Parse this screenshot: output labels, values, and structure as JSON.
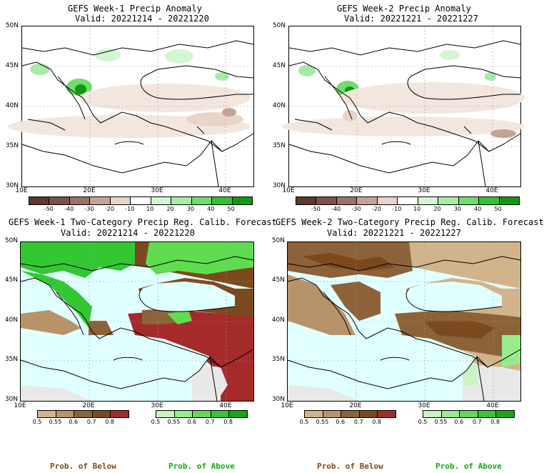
{
  "panels": [
    {
      "id": "p1",
      "title1": "GEFS Week-1 Precip Anomaly",
      "title2": "Valid: 20221214 - 20221220"
    },
    {
      "id": "p2",
      "title1": "GEFS Week-2 Precip Anomaly",
      "title2": "Valid: 20221221 - 20221227"
    },
    {
      "id": "p3",
      "title1": "GEFS Week-1 Two-Category Precip Reg. Calib. Forecast",
      "title2": "Valid: 20221214 - 20221220"
    },
    {
      "id": "p4",
      "title1": "GEFS Week-2 Two-Category Precip Reg. Calib. Forecast",
      "title2": "Valid: 20221221 - 20221227"
    }
  ],
  "lat_labels": [
    "50N",
    "45N",
    "40N",
    "35N",
    "30N"
  ],
  "lon_labels": [
    "10E",
    "20E",
    "30E",
    "40E"
  ],
  "anomaly_colorbar": {
    "labels": [
      "-50",
      "-40",
      "-30",
      "-20",
      "-10",
      "10",
      "20",
      "30",
      "40",
      "50"
    ],
    "colors": [
      "#5a3a2e",
      "#7a5246",
      "#9a7364",
      "#c4a394",
      "#e8d4c8",
      "#ffffff",
      "#d4f5d4",
      "#a6eba6",
      "#6fdc6f",
      "#33c233",
      "#109910"
    ]
  },
  "below_colorbar": {
    "labels": [
      "0.5",
      "0.55",
      "0.6",
      "0.7",
      "0.8"
    ],
    "colors": [
      "#d2b48c",
      "#b8936a",
      "#8c6239",
      "#7a4a1e",
      "#a52a2a"
    ]
  },
  "above_colorbar": {
    "labels": [
      "0.5",
      "0.55",
      "0.6",
      "0.7",
      "0.8"
    ],
    "colors": [
      "#c8f5c0",
      "#98ec8c",
      "#5fdc50",
      "#33c733",
      "#11aa11"
    ]
  },
  "prob_labels": {
    "below": "Prob. of Below",
    "above": "Prob. of Above"
  },
  "prob_colors": {
    "below": "#7a4a1e",
    "above": "#11aa11"
  },
  "chart_data": [
    {
      "type": "heatmap",
      "title": "GEFS Week-1 Precip Anomaly",
      "subtitle": "Valid: 20221214 - 20221220",
      "xlim": [
        10,
        44
      ],
      "ylim": [
        30,
        50
      ],
      "x_ticks": [
        "10E",
        "20E",
        "30E",
        "40E"
      ],
      "y_ticks": [
        "30N",
        "35N",
        "40N",
        "45N",
        "50N"
      ],
      "colorbar": [
        "-50",
        "-40",
        "-30",
        "-20",
        "-10",
        "10",
        "20",
        "30",
        "40",
        "50"
      ]
    },
    {
      "type": "heatmap",
      "title": "GEFS Week-2 Precip Anomaly",
      "subtitle": "Valid: 20221221 - 20221227",
      "xlim": [
        10,
        44
      ],
      "ylim": [
        30,
        50
      ],
      "x_ticks": [
        "10E",
        "20E",
        "30E",
        "40E"
      ],
      "y_ticks": [
        "30N",
        "35N",
        "40N",
        "45N",
        "50N"
      ],
      "colorbar": [
        "-50",
        "-40",
        "-30",
        "-20",
        "-10",
        "10",
        "20",
        "30",
        "40",
        "50"
      ]
    },
    {
      "type": "heatmap",
      "title": "GEFS Week-1 Two-Category Precip Reg. Calib. Forecast",
      "subtitle": "Valid: 20221214 - 20221220",
      "xlim": [
        10,
        44
      ],
      "ylim": [
        30,
        50
      ],
      "x_ticks": [
        "10E",
        "20E",
        "30E",
        "40E"
      ],
      "y_ticks": [
        "30N",
        "35N",
        "40N",
        "45N",
        "50N"
      ],
      "colorbar_below": [
        "0.5",
        "0.55",
        "0.6",
        "0.7",
        "0.8"
      ],
      "colorbar_above": [
        "0.5",
        "0.55",
        "0.6",
        "0.7",
        "0.8"
      ]
    },
    {
      "type": "heatmap",
      "title": "GEFS Week-2 Two-Category Precip Reg. Calib. Forecast",
      "subtitle": "Valid: 20221221 - 20221227",
      "xlim": [
        10,
        44
      ],
      "ylim": [
        30,
        50
      ],
      "x_ticks": [
        "10E",
        "20E",
        "30E",
        "40E"
      ],
      "y_ticks": [
        "30N",
        "35N",
        "40N",
        "45N",
        "50N"
      ],
      "colorbar_below": [
        "0.5",
        "0.55",
        "0.6",
        "0.7",
        "0.8"
      ],
      "colorbar_above": [
        "0.5",
        "0.55",
        "0.6",
        "0.7",
        "0.8"
      ]
    }
  ]
}
